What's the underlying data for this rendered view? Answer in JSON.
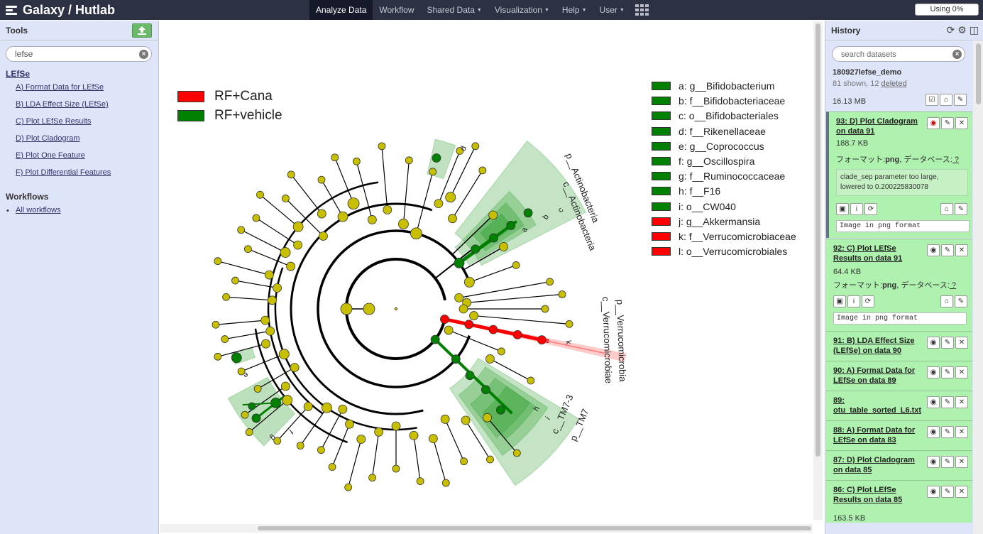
{
  "brand": {
    "title": "Galaxy / Hutlab"
  },
  "nav": {
    "items": [
      {
        "label": "Analyze Data",
        "caret": false,
        "active": true
      },
      {
        "label": "Workflow",
        "caret": false,
        "active": false
      },
      {
        "label": "Shared Data",
        "caret": true,
        "active": false
      },
      {
        "label": "Visualization",
        "caret": true,
        "active": false
      },
      {
        "label": "Help",
        "caret": true,
        "active": false
      },
      {
        "label": "User",
        "caret": true,
        "active": false
      }
    ],
    "quota": "Using 0%"
  },
  "tools": {
    "title": "Tools",
    "search_value": "lefse",
    "section_title": "LEfSe",
    "items": [
      "A) Format Data for LEfSe",
      "B) LDA Effect Size (LEfSe)",
      "C) Plot LEfSe Results",
      "D) Plot Cladogram",
      "E) Plot One Feature",
      "F) Plot Differential Features"
    ],
    "workflows_title": "Workflows",
    "workflows_link": "All workflows"
  },
  "history": {
    "title": "History",
    "search_placeholder": "search datasets",
    "name": "180927lefse_demo",
    "shown": "81 shown, 12",
    "deleted": "deleted",
    "size": "16.13 MB",
    "datasets": [
      {
        "title": "93: D) Plot Cladogram on data 91",
        "size": "188.7 KB",
        "format_label": "フォーマット:",
        "format": "png",
        "db_label": ", データベース:",
        "db": "?",
        "info": "clade_sep parameter too large, lowered to 0.200225830078",
        "peek": "Image in png format"
      },
      {
        "title": "92: C) Plot LEfSe Results on data 91",
        "size": "64.4 KB",
        "format_label": "フォーマット:",
        "format": "png",
        "db_label": ", データベース:",
        "db": "?",
        "peek": "Image in png format"
      },
      {
        "title": "91: B) LDA Effect Size (LEfSe) on data 90"
      },
      {
        "title": "90: A) Format Data for LEfSe on data 89"
      },
      {
        "title": "89: otu_table_sorted_L6.txt"
      },
      {
        "title": "88: A) Format Data for LEfSe on data 83"
      },
      {
        "title": "87: D) Plot Cladogram on data 85"
      },
      {
        "title": "86: C) Plot LEfSe Results on data 85",
        "size": "163.5 KB"
      }
    ]
  },
  "figure": {
    "classes": [
      {
        "name": "RF+Cana",
        "color": "#ff0000"
      },
      {
        "name": "RF+vehicle",
        "color": "#008000"
      }
    ],
    "features": [
      {
        "label": "a: g__Bifidobacterium",
        "color": "#008000"
      },
      {
        "label": "b: f__Bifidobacteriaceae",
        "color": "#008000"
      },
      {
        "label": "c: o__Bifidobacteriales",
        "color": "#008000"
      },
      {
        "label": "d: f__Rikenellaceae",
        "color": "#008000"
      },
      {
        "label": "e: g__Coprococcus",
        "color": "#008000"
      },
      {
        "label": "f: g__Oscillospira",
        "color": "#008000"
      },
      {
        "label": "g: f__Ruminococcaceae",
        "color": "#008000"
      },
      {
        "label": "h: f__F16",
        "color": "#008000"
      },
      {
        "label": "i: o__CW040",
        "color": "#008000"
      },
      {
        "label": "j: g__Akkermansia",
        "color": "#ff0000"
      },
      {
        "label": "k: f__Verrucomicrobiaceae",
        "color": "#ff0000"
      },
      {
        "label": "l: o__Verrucomicrobiales",
        "color": "#ff0000"
      }
    ],
    "clade_labels": {
      "p_actino": "p__Actinobacteria",
      "c_actino": "c__Actinobacteria",
      "p_verruco": "p__Verrucomicrobia",
      "c_verruco": "c__Verrucomicrobiae",
      "p_tm7": "p__TM7",
      "c_tm7": "c__TM7-3",
      "a": "a",
      "b": "b",
      "c": "c",
      "d": "d",
      "e": "e",
      "f": "f",
      "g": "g",
      "h": "h",
      "i": "i",
      "k": "k"
    }
  }
}
